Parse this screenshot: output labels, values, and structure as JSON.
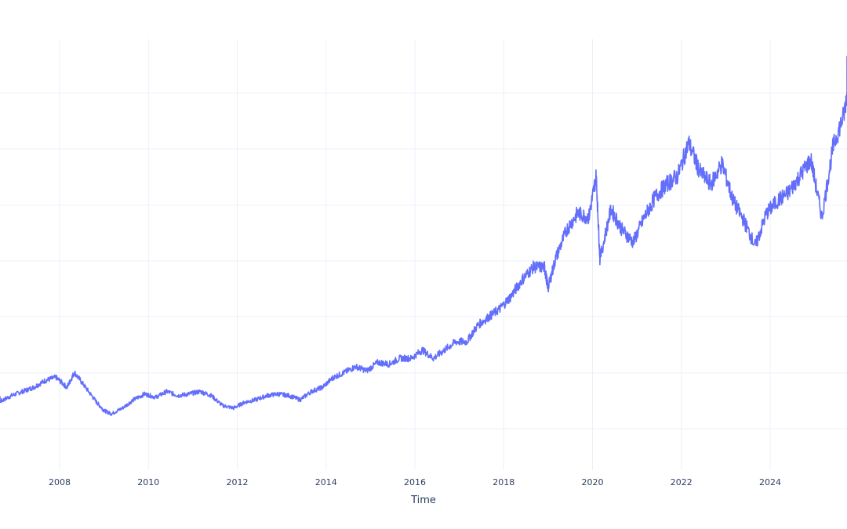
{
  "chart_data": {
    "type": "line",
    "title": "",
    "xlabel": "Time",
    "ylabel": "",
    "x_ticks": [
      "2008",
      "2010",
      "2012",
      "2014",
      "2016",
      "2018",
      "2020",
      "2022",
      "2024"
    ],
    "grid": true,
    "legend": "none",
    "series": [
      {
        "color": "#636efa",
        "x": [
          "2006-06",
          "2006-09",
          "2006-12",
          "2007-03",
          "2007-06",
          "2007-09",
          "2007-12",
          "2008-03",
          "2008-05",
          "2008-08",
          "2008-11",
          "2009-01",
          "2009-03",
          "2009-06",
          "2009-09",
          "2009-12",
          "2010-03",
          "2010-06",
          "2010-09",
          "2010-12",
          "2011-03",
          "2011-06",
          "2011-09",
          "2011-12",
          "2012-03",
          "2012-06",
          "2012-09",
          "2012-12",
          "2013-03",
          "2013-06",
          "2013-09",
          "2013-12",
          "2014-03",
          "2014-06",
          "2014-09",
          "2014-12",
          "2015-03",
          "2015-06",
          "2015-09",
          "2015-12",
          "2016-03",
          "2016-06",
          "2016-09",
          "2016-12",
          "2017-03",
          "2017-06",
          "2017-09",
          "2017-12",
          "2018-03",
          "2018-06",
          "2018-09",
          "2018-12",
          "2019-01",
          "2019-03",
          "2019-06",
          "2019-09",
          "2019-12",
          "2020-02",
          "2020-03",
          "2020-06",
          "2020-09",
          "2020-12",
          "2021-03",
          "2021-06",
          "2021-09",
          "2021-12",
          "2022-03",
          "2022-06",
          "2022-09",
          "2022-12",
          "2023-03",
          "2023-06",
          "2023-09",
          "2023-12",
          "2024-03",
          "2024-06",
          "2024-09",
          "2024-12",
          "2025-03",
          "2025-06",
          "2025-09",
          "2025-11"
        ],
        "y": [
          0.88,
          0.83,
          0.9,
          0.95,
          1.0,
          1.08,
          1.12,
          1.0,
          1.18,
          1.0,
          0.82,
          0.72,
          0.68,
          0.75,
          0.85,
          0.92,
          0.88,
          0.95,
          0.9,
          0.92,
          0.95,
          0.9,
          0.78,
          0.75,
          0.82,
          0.85,
          0.9,
          0.92,
          0.9,
          0.85,
          0.95,
          1.0,
          1.12,
          1.18,
          1.25,
          1.2,
          1.3,
          1.28,
          1.35,
          1.35,
          1.45,
          1.35,
          1.45,
          1.55,
          1.55,
          1.75,
          1.85,
          1.95,
          2.1,
          2.3,
          2.45,
          2.45,
          2.2,
          2.55,
          2.9,
          3.1,
          3.05,
          3.55,
          2.55,
          3.15,
          2.9,
          2.75,
          3.05,
          3.3,
          3.45,
          3.55,
          3.95,
          3.6,
          3.45,
          3.7,
          3.25,
          3.0,
          2.7,
          3.1,
          3.25,
          3.35,
          3.55,
          3.75,
          3.05,
          3.9,
          4.3,
          4.95
        ]
      }
    ]
  }
}
